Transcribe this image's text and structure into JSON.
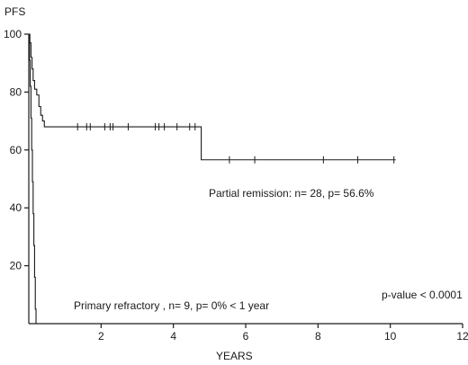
{
  "chart_data": {
    "type": "line",
    "title": "",
    "ylabel": "PFS",
    "xlabel": "YEARS",
    "xlim": [
      0,
      12
    ],
    "ylim": [
      0,
      100
    ],
    "x_ticks": [
      "2",
      "4",
      "6",
      "8",
      "10",
      "12"
    ],
    "y_ticks": [
      "20",
      "40",
      "60",
      "80",
      "100"
    ],
    "grid": false,
    "series": [
      {
        "name": "Partial remission",
        "steps": [
          [
            0,
            100
          ],
          [
            0.03,
            97
          ],
          [
            0.06,
            92
          ],
          [
            0.09,
            88
          ],
          [
            0.12,
            84
          ],
          [
            0.16,
            81
          ],
          [
            0.22,
            79
          ],
          [
            0.28,
            75
          ],
          [
            0.33,
            72
          ],
          [
            0.38,
            70
          ],
          [
            0.43,
            68
          ],
          [
            4.77,
            68
          ],
          [
            4.77,
            56.6
          ],
          [
            10.15,
            56.6
          ]
        ],
        "censored": [
          [
            1.35,
            68
          ],
          [
            1.6,
            68
          ],
          [
            1.7,
            68
          ],
          [
            2.1,
            68
          ],
          [
            2.25,
            68
          ],
          [
            2.33,
            68
          ],
          [
            2.75,
            68
          ],
          [
            3.5,
            68
          ],
          [
            3.6,
            68
          ],
          [
            3.75,
            68
          ],
          [
            4.1,
            68
          ],
          [
            4.45,
            68
          ],
          [
            4.6,
            68
          ],
          [
            5.55,
            56.6
          ],
          [
            6.25,
            56.6
          ],
          [
            8.15,
            56.6
          ],
          [
            9.1,
            56.6
          ],
          [
            10.1,
            56.6
          ]
        ]
      },
      {
        "name": "Primary refractory",
        "steps": [
          [
            0,
            100
          ],
          [
            0.02,
            91
          ],
          [
            0.04,
            82
          ],
          [
            0.06,
            71
          ],
          [
            0.08,
            60
          ],
          [
            0.1,
            49
          ],
          [
            0.12,
            38
          ],
          [
            0.14,
            27
          ],
          [
            0.16,
            16
          ],
          [
            0.18,
            5
          ],
          [
            0.2,
            0
          ]
        ],
        "censored": []
      }
    ],
    "annotations": {
      "partial_remission": "Partial remission: n= 28, p= 56.6%",
      "primary_refractory": "Primary refractory , n= 9, p= 0% < 1 year",
      "p_value": "p-value < 0.0001"
    }
  }
}
